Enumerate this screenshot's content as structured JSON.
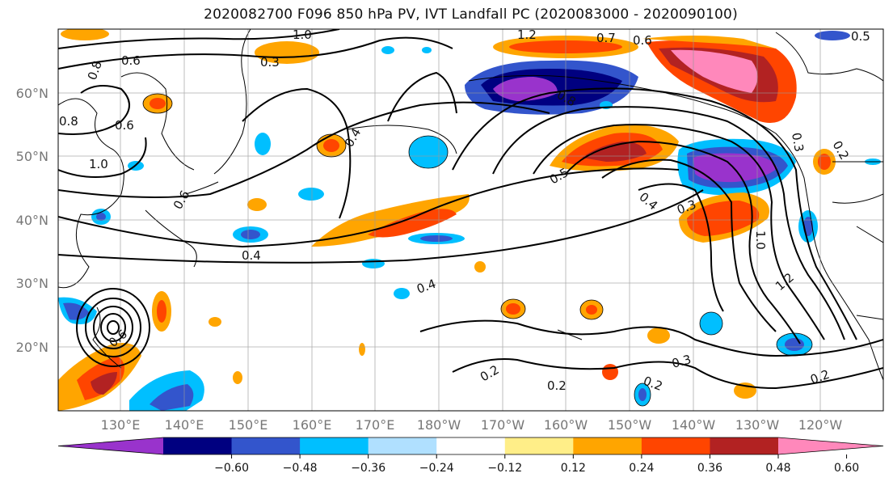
{
  "title": "2020082700 F096 850 hPa PV, IVT Landfall PC (2020083000 - 2020090100)",
  "map": {
    "lat_labels": [
      "60°N",
      "50°N",
      "40°N",
      "30°N",
      "20°N"
    ],
    "lon_labels": [
      "130°E",
      "140°E",
      "150°E",
      "160°E",
      "170°E",
      "180°W",
      "170°W",
      "160°W",
      "150°W",
      "140°W",
      "130°W",
      "120°W"
    ],
    "contour_labels": [
      "1.0",
      "0.6",
      "0.3",
      "0.8",
      "0.6",
      "0.8",
      "1.0",
      "0.6",
      "0.4",
      "0.4",
      "0.4",
      "0.2",
      "0.2",
      "0.2",
      "0.2",
      "0.3",
      "0.5",
      "0.4",
      "0.3",
      "1.0",
      "1.2",
      "0.2",
      "0.3",
      "1.2",
      "0.7",
      "0.6",
      "0.5",
      "0.8",
      "0.6"
    ]
  },
  "colorbar": {
    "colors": [
      "#9933cc",
      "#000080",
      "#3355cc",
      "#00bfff",
      "#b0e0ff",
      "#ffffff",
      "#ffee88",
      "#ffa500",
      "#ff4500",
      "#b22222",
      "#ff88bb"
    ],
    "tick_labels": [
      "−0.60",
      "−0.48",
      "−0.36",
      "−0.24",
      "−0.12",
      "0.12",
      "0.24",
      "0.36",
      "0.48",
      "0.60"
    ]
  }
}
